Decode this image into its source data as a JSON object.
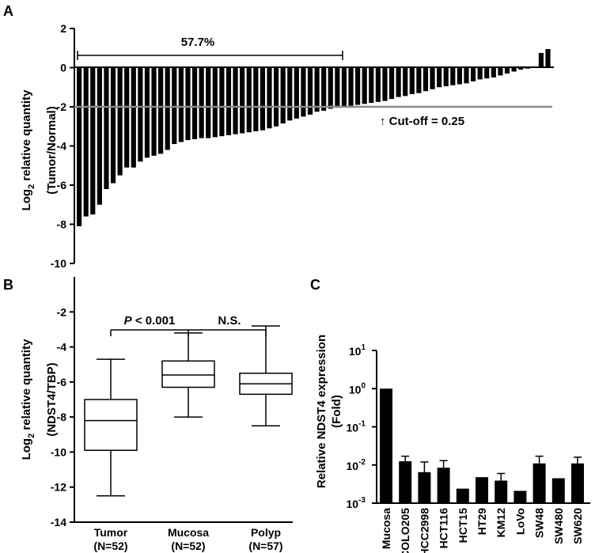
{
  "chart_data": [
    {
      "panel": "A",
      "type": "bar",
      "ylabel_main": "Log",
      "ylabel_sub": "2",
      "ylabel_rest": " relative quantity",
      "ylabel_line2": "(Tumor/Normal)",
      "ylim": [
        -10,
        2
      ],
      "yticks": [
        "2",
        "0",
        "-2",
        "-4",
        "-6",
        "-8",
        "-10"
      ],
      "bracket_label": "57.7%",
      "cutoff_value": -2,
      "cutoff_label": "↑ Cut-off = 0.25",
      "values": [
        -8.1,
        -7.6,
        -7.5,
        -7.0,
        -6.2,
        -5.9,
        -5.5,
        -5.1,
        -5.1,
        -4.8,
        -4.6,
        -4.5,
        -4.4,
        -4.2,
        -3.9,
        -3.8,
        -3.7,
        -3.65,
        -3.6,
        -3.6,
        -3.55,
        -3.5,
        -3.45,
        -3.4,
        -3.35,
        -3.3,
        -3.25,
        -3.2,
        -3.1,
        -3.0,
        -2.85,
        -2.7,
        -2.6,
        -2.5,
        -2.4,
        -2.25,
        -2.2,
        -2.1,
        -2.05,
        -2.0,
        -1.95,
        -1.9,
        -1.85,
        -1.8,
        -1.75,
        -1.7,
        -1.6,
        -1.5,
        -1.45,
        -1.35,
        -1.3,
        -1.2,
        -1.1,
        -1.0,
        -0.95,
        -0.9,
        -0.85,
        -0.8,
        -0.7,
        -0.6,
        -0.55,
        -0.5,
        -0.4,
        -0.3,
        -0.2,
        -0.1,
        -0.05,
        0.05,
        0.75,
        0.95
      ]
    },
    {
      "panel": "B",
      "type": "boxplot",
      "ylabel_main": "Log",
      "ylabel_sub": "2",
      "ylabel_rest": " relative quantity",
      "ylabel_line2": "(NDST4/TBP)",
      "ylim": [
        -14,
        0
      ],
      "yticks": [
        "-2",
        "-4",
        "-6",
        "-8",
        "-10",
        "-12",
        "-14"
      ],
      "groups": [
        {
          "name": "Tumor",
          "n": "(N=52)",
          "min": -12.5,
          "q1": -9.9,
          "median": -8.2,
          "q3": -7.0,
          "max": -4.7
        },
        {
          "name": "Mucosa",
          "n": "(N=52)",
          "min": -8.0,
          "q1": -6.3,
          "median": -5.6,
          "q3": -4.8,
          "max": -3.2
        },
        {
          "name": "Polyp",
          "n": "(N=57)",
          "min": -8.5,
          "q1": -6.7,
          "median": -6.1,
          "q3": -5.5,
          "max": -2.8
        }
      ],
      "comparisons": [
        {
          "p_italic": "P",
          "label": " < 0.001"
        },
        {
          "p_italic": "",
          "label": "N.S."
        }
      ]
    },
    {
      "panel": "C",
      "type": "bar",
      "yscale": "log",
      "ylabel_line1": "Relative NDST4 expression",
      "ylabel_line2": "(Fold)",
      "yticks": [
        {
          "base": "10",
          "exp": "1"
        },
        {
          "base": "10",
          "exp": "0"
        },
        {
          "base": "10",
          "exp": "-1"
        },
        {
          "base": "10",
          "exp": "-2"
        },
        {
          "base": "10",
          "exp": "-3"
        }
      ],
      "categories": [
        "Mucosa",
        "COLO205",
        "HCC2998",
        "HCT116",
        "HCT15",
        "HT29",
        "KM12",
        "LoVo",
        "SW48",
        "SW480",
        "SW620"
      ],
      "values": [
        1.0,
        0.0125,
        0.0065,
        0.0085,
        0.0024,
        0.0048,
        0.0039,
        0.0021,
        0.011,
        0.0045,
        0.011
      ],
      "errors_upper": [
        1.0,
        0.017,
        0.012,
        0.013,
        0.0024,
        0.0048,
        0.006,
        0.0021,
        0.017,
        0.0045,
        0.016
      ]
    }
  ]
}
